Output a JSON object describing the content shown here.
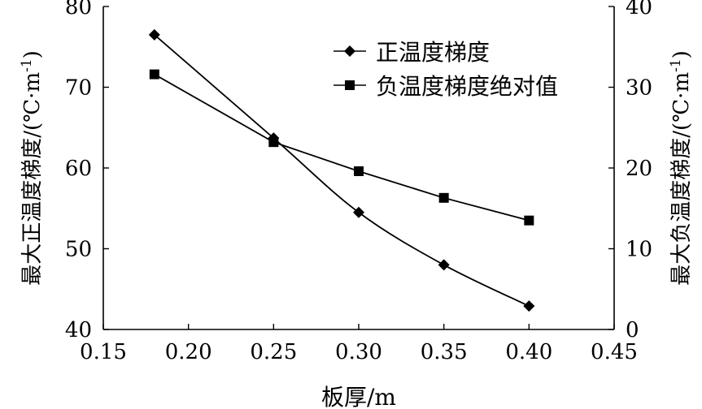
{
  "chart_data": {
    "type": "line",
    "xlabel": "板厚/m",
    "ylabel_left": "最大正温度梯度/(℃·m",
    "ylabel_right": "最大负温度梯度/(℃·m",
    "ylabel_exponent": "-1",
    "ylabel_close": ")",
    "xlim": [
      0.15,
      0.45
    ],
    "ylim_left": [
      40,
      80
    ],
    "ylim_right": [
      0,
      40
    ],
    "x_ticks": [
      "0.15",
      "0.20",
      "0.25",
      "0.30",
      "0.35",
      "0.40",
      "0.45"
    ],
    "y_left_ticks": [
      "40",
      "50",
      "60",
      "70",
      "80"
    ],
    "y_right_ticks": [
      "0",
      "10",
      "20",
      "30",
      "40"
    ],
    "legend_position": "top-right",
    "grid": false,
    "series": [
      {
        "name": "正温度梯度",
        "axis": "left",
        "marker": "diamond",
        "x": [
          0.18,
          0.25,
          0.3,
          0.35,
          0.4
        ],
        "y": [
          76.5,
          63.7,
          54.5,
          48.0,
          42.9
        ]
      },
      {
        "name": "负温度梯度绝对值",
        "axis": "right",
        "marker": "square",
        "x": [
          0.18,
          0.25,
          0.3,
          0.35,
          0.4
        ],
        "y": [
          31.6,
          23.2,
          19.6,
          16.3,
          13.5
        ]
      }
    ]
  }
}
